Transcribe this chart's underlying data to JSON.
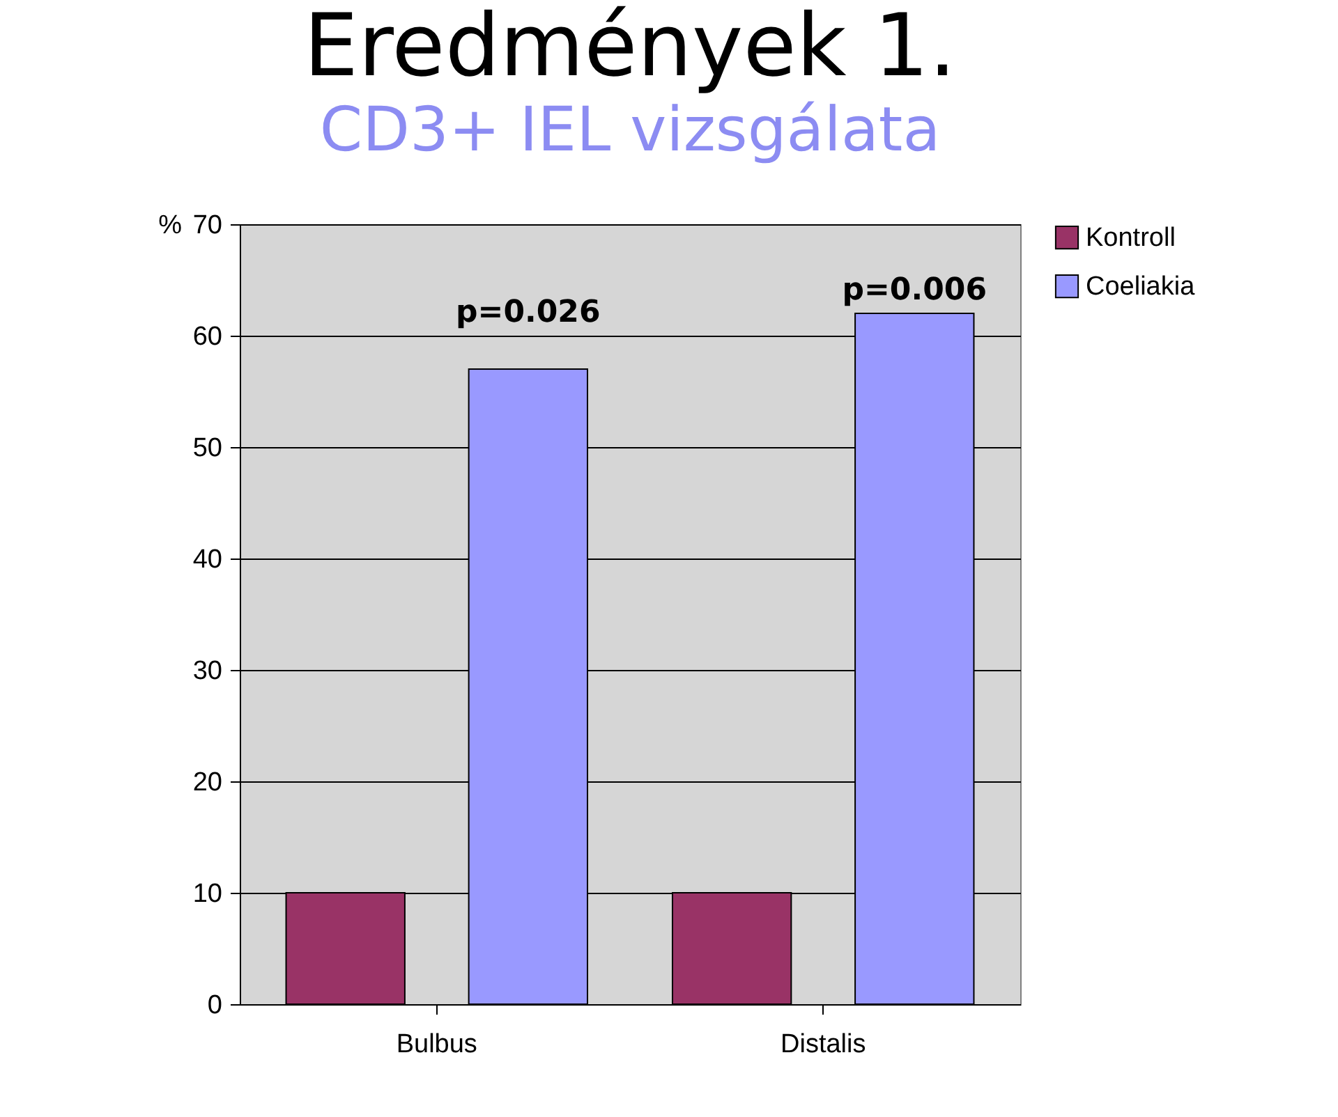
{
  "chart_data": {
    "type": "bar",
    "title": "Eredmények 1.",
    "subtitle": "CD3+ IEL vizsgálata",
    "ylabel": "%",
    "categories": [
      "Bulbus",
      "Distalis"
    ],
    "series": [
      {
        "name": "Kontroll",
        "color": "#993366",
        "values": [
          10,
          10
        ]
      },
      {
        "name": "Coeliakia",
        "color": "#9999ff",
        "values": [
          57,
          62
        ]
      }
    ],
    "ylim": [
      0,
      70
    ],
    "yticks": [
      0,
      10,
      20,
      30,
      40,
      50,
      60,
      70
    ],
    "grid": "y",
    "legend": "right",
    "annotations": [
      "p=0.026",
      "p=0.006"
    ]
  }
}
